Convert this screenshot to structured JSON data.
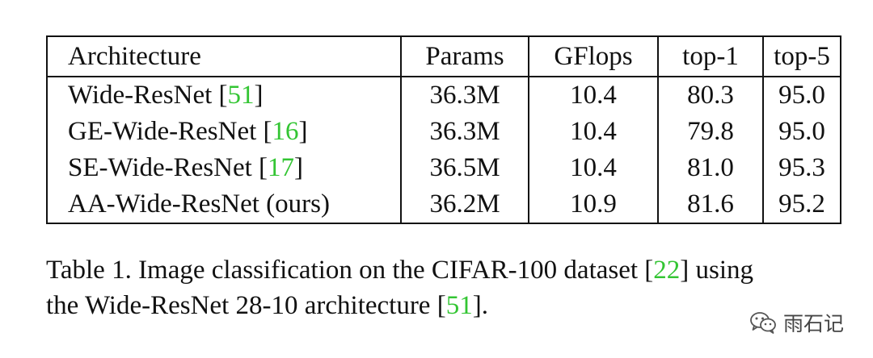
{
  "table": {
    "headers": [
      "Architecture",
      "Params",
      "GFlops",
      "top-1",
      "top-5"
    ],
    "rows": [
      {
        "name": "Wide-ResNet ",
        "bracket_open": "[",
        "cite": "51",
        "bracket_close": "]",
        "params": "36.3M",
        "gflops": "10.4",
        "top1": "80.3",
        "top5": "95.0"
      },
      {
        "name": "GE-Wide-ResNet ",
        "bracket_open": "[",
        "cite": "16",
        "bracket_close": "]",
        "params": "36.3M",
        "gflops": "10.4",
        "top1": "79.8",
        "top5": "95.0"
      },
      {
        "name": "SE-Wide-ResNet ",
        "bracket_open": "[",
        "cite": "17",
        "bracket_close": "]",
        "params": "36.5M",
        "gflops": "10.4",
        "top1": "81.0",
        "top5": "95.3"
      },
      {
        "name": "AA-Wide-ResNet (ours)",
        "bracket_open": "",
        "cite": "",
        "bracket_close": "",
        "params": "36.2M",
        "gflops": "10.9",
        "top1": "81.6",
        "top5": "95.2"
      }
    ]
  },
  "caption": {
    "line1_pre": "Table 1. Image classification on the CIFAR-100 dataset [",
    "line1_cite": "22",
    "line1_post": "] using",
    "line2_pre": "the Wide-ResNet 28-10 architecture [",
    "line2_cite": "51",
    "line2_post": "]."
  },
  "watermark": {
    "icon": "wechat-icon",
    "text": "雨石记"
  },
  "colors": {
    "citation": "#33c533",
    "text": "#111111"
  }
}
